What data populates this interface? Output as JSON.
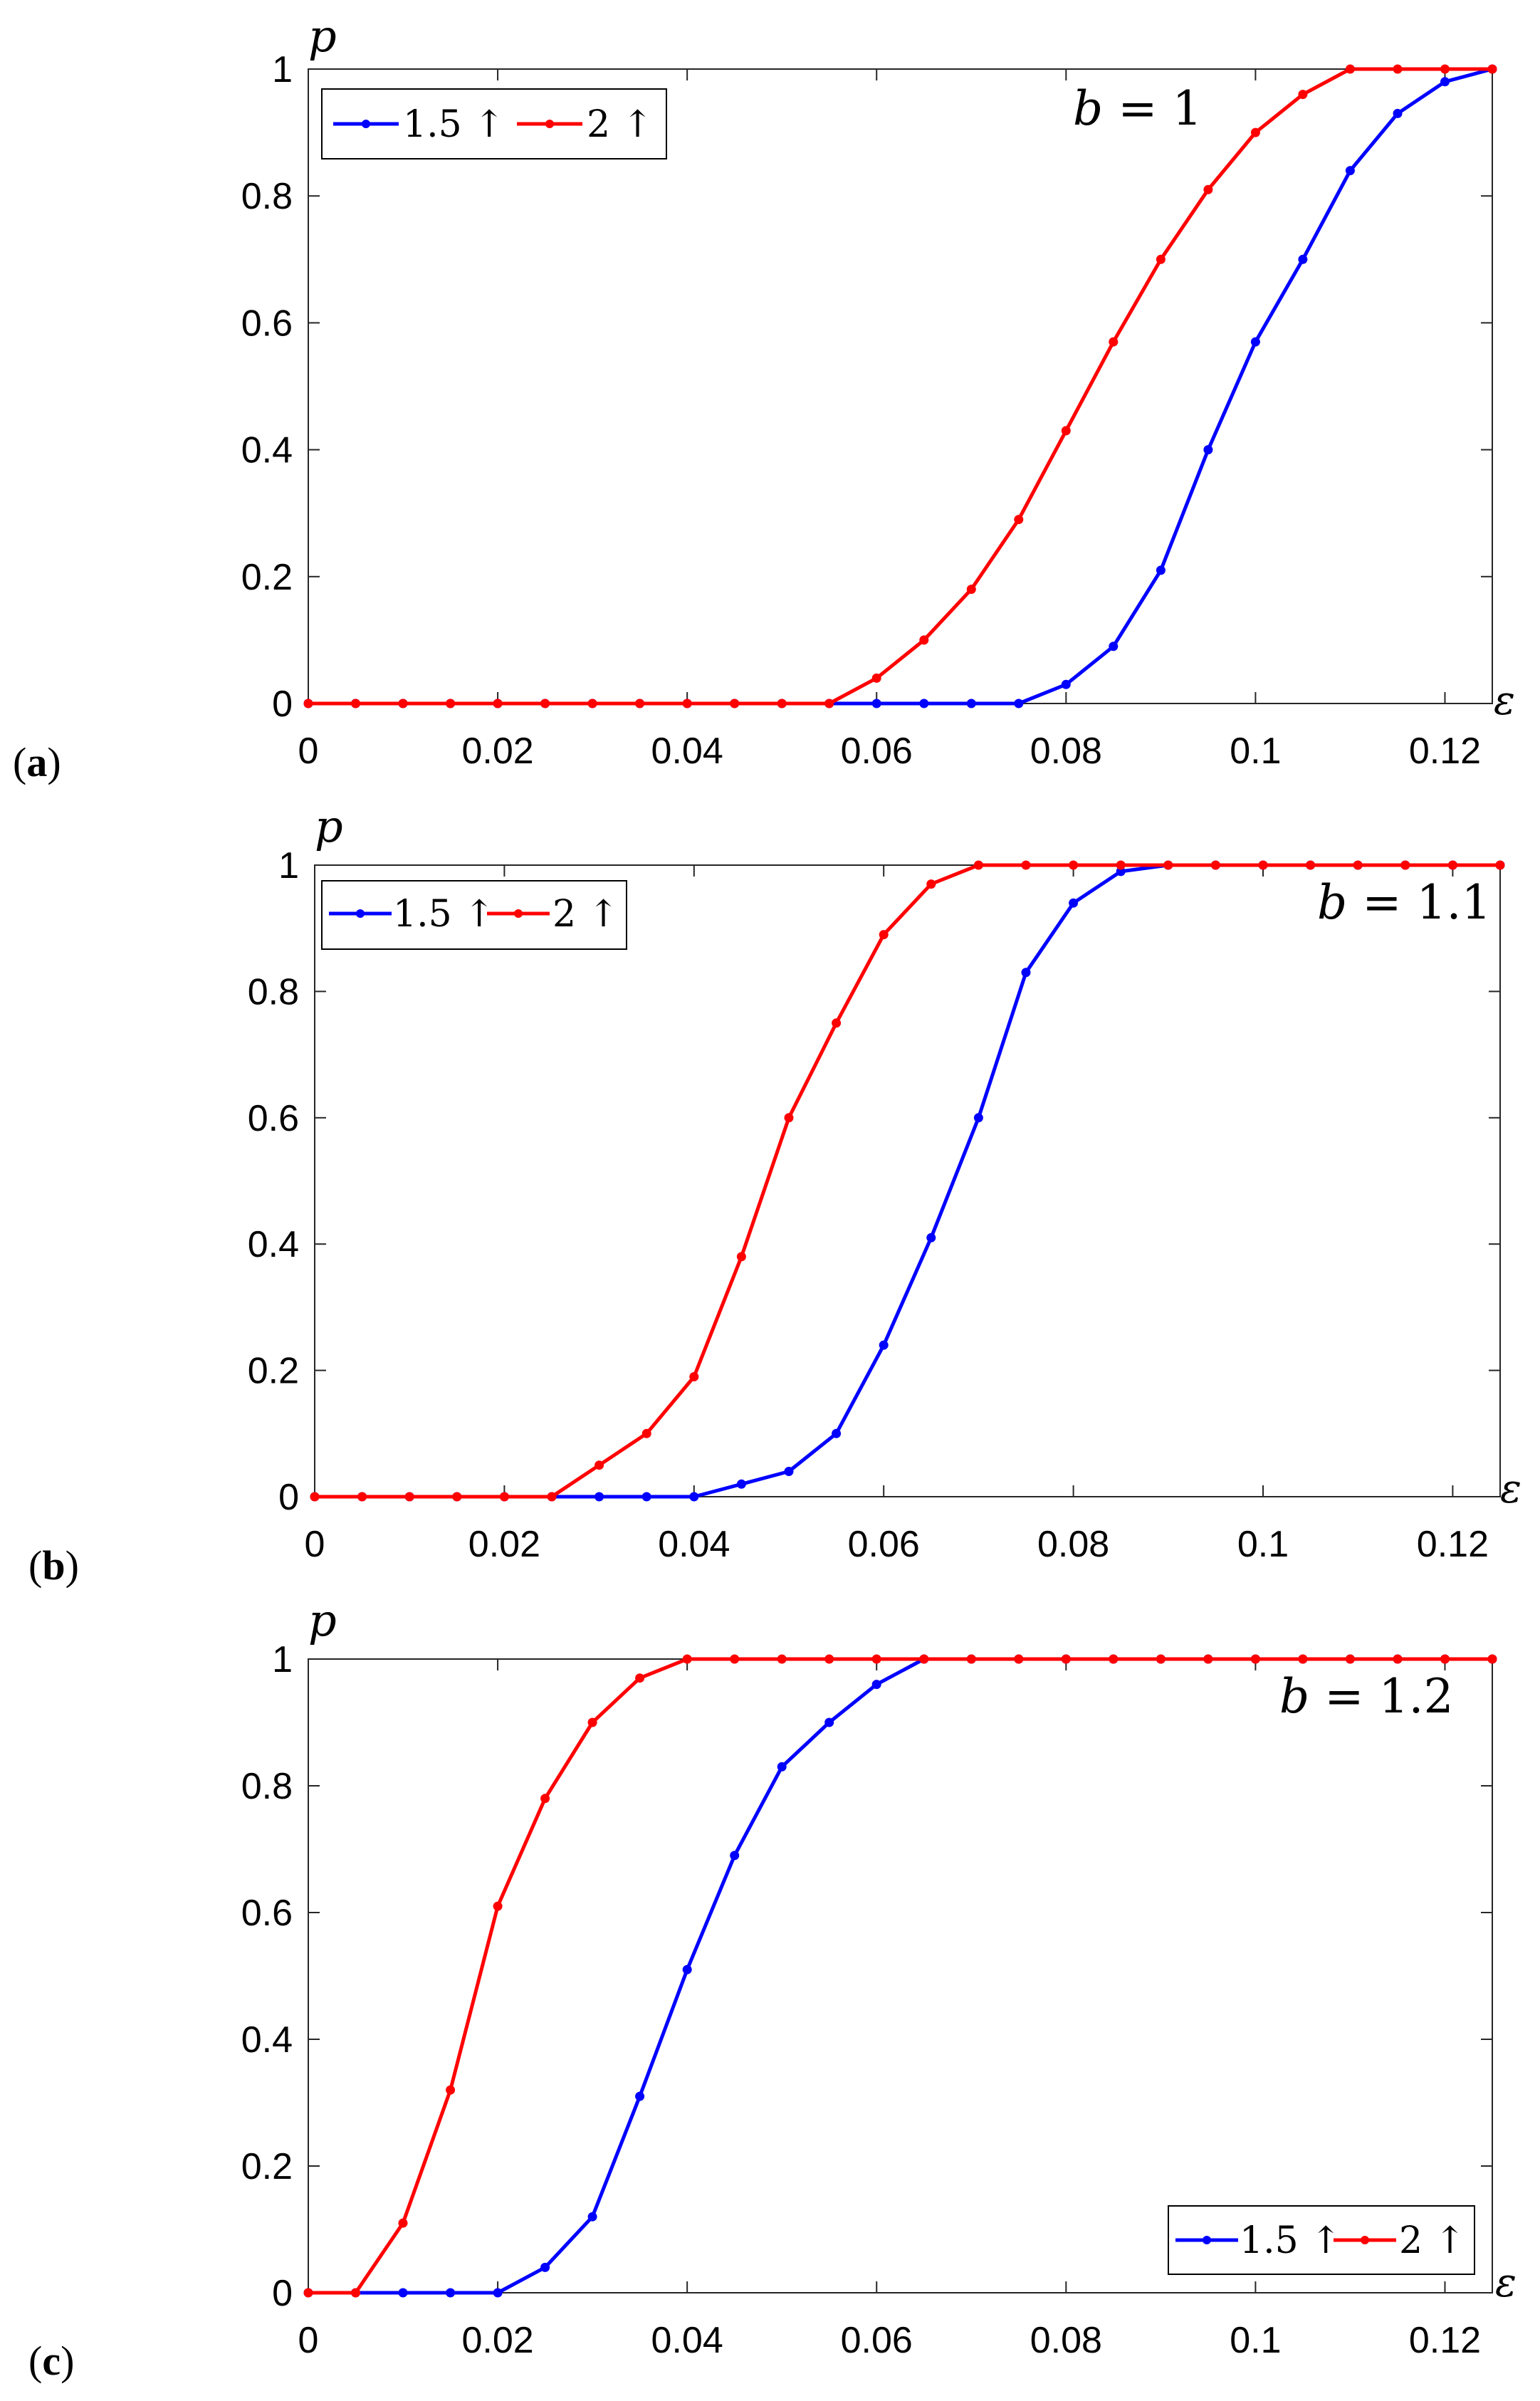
{
  "chart_data": [
    {
      "type": "line",
      "panel_label_open": "(",
      "panel_label_letter": "a",
      "panel_label_close": ")",
      "annotation_var": "b",
      "annotation_eq": " = ",
      "annotation_val": "1",
      "xlabel": "ε",
      "ylabel": "p",
      "xlim": [
        0,
        0.125
      ],
      "ylim": [
        0,
        1
      ],
      "xticks": [
        0,
        0.02,
        0.04,
        0.06,
        0.08,
        0.1,
        0.12
      ],
      "xtick_labels": [
        "0",
        "0.02",
        "0.04",
        "0.06",
        "0.08",
        "0.1",
        "0.12"
      ],
      "yticks": [
        0,
        0.2,
        0.4,
        0.6,
        0.8,
        1
      ],
      "ytick_labels": [
        "0",
        "0.2",
        "0.4",
        "0.6",
        "0.8",
        "1"
      ],
      "legend_position": "top-left",
      "x": [
        0,
        0.005,
        0.01,
        0.015,
        0.02,
        0.025,
        0.03,
        0.035,
        0.04,
        0.045,
        0.05,
        0.055,
        0.06,
        0.065,
        0.07,
        0.075,
        0.08,
        0.085,
        0.09,
        0.095,
        0.1,
        0.105,
        0.11,
        0.115,
        0.12,
        0.125
      ],
      "series": [
        {
          "name": "1.5 ↑",
          "color": "#0000ff",
          "values": [
            0,
            0,
            0,
            0,
            0,
            0,
            0,
            0,
            0,
            0,
            0,
            0,
            0,
            0,
            0,
            0,
            0.03,
            0.09,
            0.21,
            0.4,
            0.57,
            0.7,
            0.84,
            0.93,
            0.98,
            1.0
          ]
        },
        {
          "name": "2 ↑",
          "color": "#ff0000",
          "values": [
            0,
            0,
            0,
            0,
            0,
            0,
            0,
            0,
            0,
            0,
            0,
            0,
            0.04,
            0.1,
            0.18,
            0.29,
            0.43,
            0.57,
            0.7,
            0.81,
            0.9,
            0.96,
            1.0,
            1.0,
            1.0,
            1.0
          ]
        }
      ]
    },
    {
      "type": "line",
      "panel_label_open": "(",
      "panel_label_letter": "b",
      "panel_label_close": ")",
      "annotation_var": "b",
      "annotation_eq": " = ",
      "annotation_val": "1.1",
      "xlabel": "ε",
      "ylabel": "p",
      "xlim": [
        0,
        0.125
      ],
      "ylim": [
        0,
        1
      ],
      "xticks": [
        0,
        0.02,
        0.04,
        0.06,
        0.08,
        0.1,
        0.12
      ],
      "xtick_labels": [
        "0",
        "0.02",
        "0.04",
        "0.06",
        "0.08",
        "0.1",
        "0.12"
      ],
      "yticks": [
        0,
        0.2,
        0.4,
        0.6,
        0.8,
        1
      ],
      "ytick_labels": [
        "0",
        "0.2",
        "0.4",
        "0.6",
        "0.8",
        "1"
      ],
      "legend_position": "top-left",
      "x": [
        0,
        0.005,
        0.01,
        0.015,
        0.02,
        0.025,
        0.03,
        0.035,
        0.04,
        0.045,
        0.05,
        0.055,
        0.06,
        0.065,
        0.07,
        0.075,
        0.08,
        0.085,
        0.09,
        0.095,
        0.1,
        0.105,
        0.11,
        0.115,
        0.12,
        0.125
      ],
      "series": [
        {
          "name": "1.5 ↑",
          "color": "#0000ff",
          "values": [
            0,
            0,
            0,
            0,
            0,
            0,
            0,
            0,
            0,
            0.02,
            0.04,
            0.1,
            0.24,
            0.41,
            0.6,
            0.83,
            0.94,
            0.99,
            1.0,
            1.0,
            1.0,
            1.0,
            1.0,
            1.0,
            1.0,
            1.0
          ]
        },
        {
          "name": "2 ↑",
          "color": "#ff0000",
          "values": [
            0,
            0,
            0,
            0,
            0,
            0,
            0.05,
            0.1,
            0.19,
            0.38,
            0.6,
            0.75,
            0.89,
            0.97,
            1.0,
            1.0,
            1.0,
            1.0,
            1.0,
            1.0,
            1.0,
            1.0,
            1.0,
            1.0,
            1.0,
            1.0
          ]
        }
      ]
    },
    {
      "type": "line",
      "panel_label_open": "(",
      "panel_label_letter": "c",
      "panel_label_close": ")",
      "annotation_var": "b",
      "annotation_eq": " = ",
      "annotation_val": "1.2",
      "xlabel": "ε",
      "ylabel": "p",
      "xlim": [
        0,
        0.125
      ],
      "ylim": [
        0,
        1
      ],
      "xticks": [
        0,
        0.02,
        0.04,
        0.06,
        0.08,
        0.1,
        0.12
      ],
      "xtick_labels": [
        "0",
        "0.02",
        "0.04",
        "0.06",
        "0.08",
        "0.1",
        "0.12"
      ],
      "yticks": [
        0,
        0.2,
        0.4,
        0.6,
        0.8,
        1
      ],
      "ytick_labels": [
        "0",
        "0.2",
        "0.4",
        "0.6",
        "0.8",
        "1"
      ],
      "legend_position": "bottom-right",
      "x": [
        0,
        0.005,
        0.01,
        0.015,
        0.02,
        0.025,
        0.03,
        0.035,
        0.04,
        0.045,
        0.05,
        0.055,
        0.06,
        0.065,
        0.07,
        0.075,
        0.08,
        0.085,
        0.09,
        0.095,
        0.1,
        0.105,
        0.11,
        0.115,
        0.12,
        0.125
      ],
      "series": [
        {
          "name": "1.5 ↑",
          "color": "#0000ff",
          "values": [
            0,
            0,
            0,
            0,
            0,
            0.04,
            0.12,
            0.31,
            0.51,
            0.69,
            0.83,
            0.9,
            0.96,
            1.0,
            1.0,
            1.0,
            1.0,
            1.0,
            1.0,
            1.0,
            1.0,
            1.0,
            1.0,
            1.0,
            1.0,
            1.0
          ]
        },
        {
          "name": "2 ↑",
          "color": "#ff0000",
          "values": [
            0,
            0,
            0.11,
            0.32,
            0.61,
            0.78,
            0.9,
            0.97,
            1.0,
            1.0,
            1.0,
            1.0,
            1.0,
            1.0,
            1.0,
            1.0,
            1.0,
            1.0,
            1.0,
            1.0,
            1.0,
            1.0,
            1.0,
            1.0,
            1.0,
            1.0
          ]
        }
      ]
    }
  ]
}
